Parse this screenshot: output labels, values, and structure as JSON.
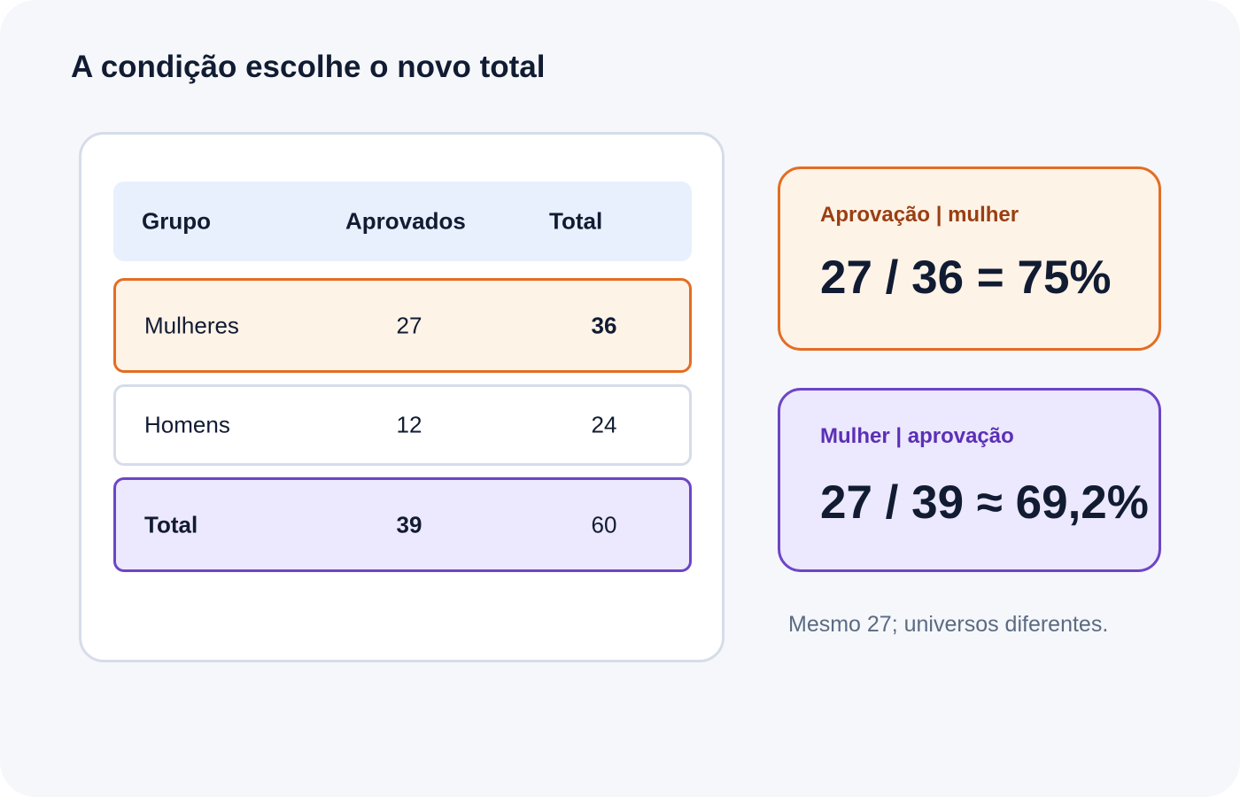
{
  "title": "A condição escolhe o novo total",
  "table": {
    "headers": [
      "Grupo",
      "Aprovados",
      "Total"
    ],
    "rows": [
      {
        "group": "Mulheres",
        "approved": "27",
        "total": "36"
      },
      {
        "group": "Homens",
        "approved": "12",
        "total": "24"
      },
      {
        "group": "Total",
        "approved": "39",
        "total": "60"
      }
    ]
  },
  "cards": [
    {
      "label": "Aprovação | mulher",
      "formula": "27 / 36 = 75%"
    },
    {
      "label": "Mulher | aprovação",
      "formula": "27 / 39 ≈ 69,2%"
    }
  ],
  "note": "Mesmo 27; universos diferentes.",
  "colors": {
    "orange_accent": "#e36d24",
    "orange_fill": "#fef3e7",
    "purple_accent": "#6d45c6",
    "purple_fill": "#ece8fd",
    "header_fill": "#e8f0fd",
    "text_dark": "#111c33"
  }
}
